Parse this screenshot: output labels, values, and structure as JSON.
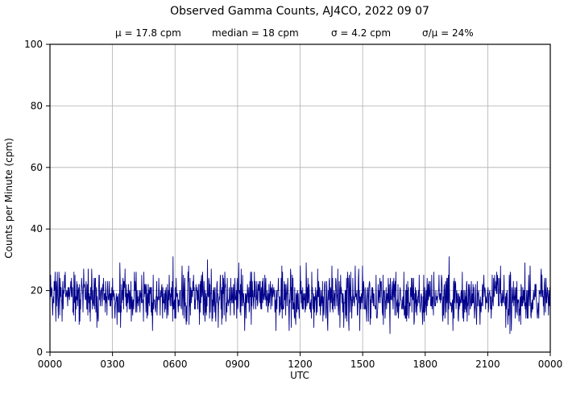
{
  "chart_data": {
    "type": "line",
    "title": "Observed Gamma Counts, AJ4CO, 2022 09 07",
    "stats": {
      "mu_label": "μ = 17.8 cpm",
      "median_label": "median = 18 cpm",
      "sigma_label": "σ = 4.2 cpm",
      "sigma_over_mu_label": "σ/μ = 24%"
    },
    "xlabel": "UTC",
    "ylabel": "Counts per Minute (cpm)",
    "x_tick_labels": [
      "0000",
      "0300",
      "0600",
      "0900",
      "1200",
      "1500",
      "1800",
      "2100",
      "0000"
    ],
    "y_ticks": [
      0,
      20,
      40,
      60,
      80,
      100
    ],
    "ylim": [
      0,
      100
    ],
    "grid": true,
    "grid_color": "#b0b0b0",
    "legend": "none",
    "duration_minutes": 1440,
    "n_points": 1440,
    "series": [
      {
        "name": "observed gamma counts",
        "color": "#00008b",
        "mean": 17.8,
        "median": 18,
        "sigma": 4.2,
        "min": 4,
        "max": 33,
        "seed": 20220907,
        "distribution": "normal-integer-noise"
      }
    ]
  }
}
